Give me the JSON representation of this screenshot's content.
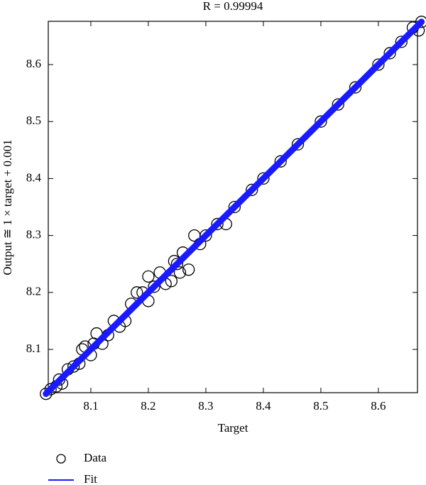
{
  "chart_data": {
    "type": "scatter",
    "title": "R = 0.99994",
    "x_label": "Target",
    "y_label": "Output ≅ 1 × target + 0.001",
    "xlim": [
      8.026,
      8.668
    ],
    "ylim": [
      8.024,
      8.676
    ],
    "xticks": [
      8.1,
      8.2,
      8.3,
      8.4,
      8.5,
      8.6
    ],
    "yticks": [
      8.1,
      8.2,
      8.3,
      8.4,
      8.5,
      8.6
    ],
    "series": [
      {
        "name": "Data",
        "color": "#000000",
        "style": "marker",
        "x": [
          8.022,
          8.03,
          8.04,
          8.045,
          8.05,
          8.06,
          8.07,
          8.08,
          8.085,
          8.09,
          8.1,
          8.105,
          8.11,
          8.12,
          8.13,
          8.14,
          8.15,
          8.16,
          8.17,
          8.18,
          8.19,
          8.2,
          8.2,
          8.21,
          8.22,
          8.23,
          8.24,
          8.245,
          8.25,
          8.255,
          8.26,
          8.27,
          8.28,
          8.29,
          8.3,
          8.32,
          8.335,
          8.35,
          8.38,
          8.4,
          8.43,
          8.46,
          8.5,
          8.53,
          8.56,
          8.6,
          8.62,
          8.64,
          8.66,
          8.67,
          8.675
        ],
        "values": [
          8.022,
          8.03,
          8.035,
          8.047,
          8.04,
          8.065,
          8.07,
          8.075,
          8.1,
          8.105,
          8.09,
          8.11,
          8.128,
          8.11,
          8.125,
          8.15,
          8.14,
          8.15,
          8.18,
          8.2,
          8.2,
          8.185,
          8.228,
          8.21,
          8.235,
          8.215,
          8.22,
          8.255,
          8.25,
          8.235,
          8.27,
          8.24,
          8.3,
          8.285,
          8.3,
          8.32,
          8.32,
          8.35,
          8.38,
          8.4,
          8.43,
          8.46,
          8.5,
          8.53,
          8.56,
          8.6,
          8.62,
          8.64,
          8.665,
          8.66,
          8.675
        ]
      },
      {
        "name": "Fit",
        "color": "#1a1aff",
        "style": "line",
        "x": [
          8.022,
          8.675
        ],
        "values": [
          8.022,
          8.675
        ]
      }
    ]
  }
}
